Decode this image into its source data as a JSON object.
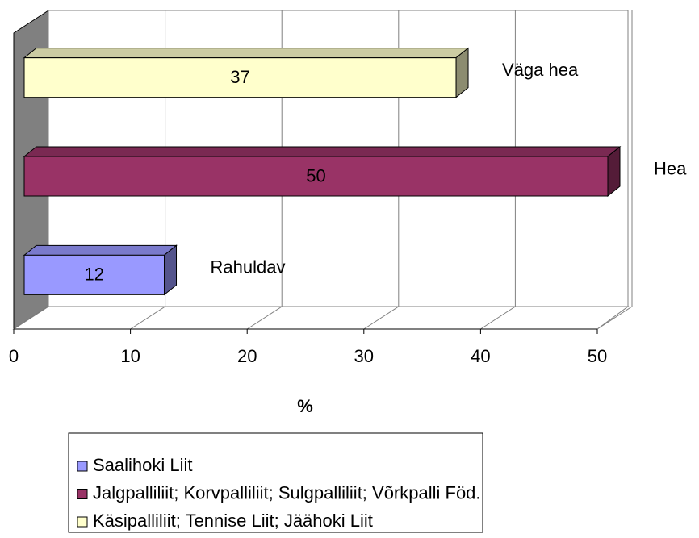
{
  "chart_data": {
    "type": "bar",
    "orientation": "horizontal",
    "categories": [
      "Rahuldav",
      "Hea",
      "Väga hea"
    ],
    "series": [
      {
        "name": "Saalihoki Liit",
        "color": "#9999ff",
        "values": [
          12,
          null,
          null
        ]
      },
      {
        "name": "Jalgpalliliit; Korvpalliliit; Sulgpalliliit; Võrkpalli Föd.",
        "color": "#993366",
        "values": [
          null,
          50,
          null
        ]
      },
      {
        "name": "Käsipalliliit; Tennise Liit; Jäähoki Liit",
        "color": "#ffffcc",
        "values": [
          null,
          null,
          37
        ]
      }
    ],
    "xlabel": "%",
    "xlim": [
      0,
      50
    ],
    "xticks": [
      0,
      10,
      20,
      30,
      40,
      50
    ],
    "grid": true,
    "legend": "bottom"
  }
}
